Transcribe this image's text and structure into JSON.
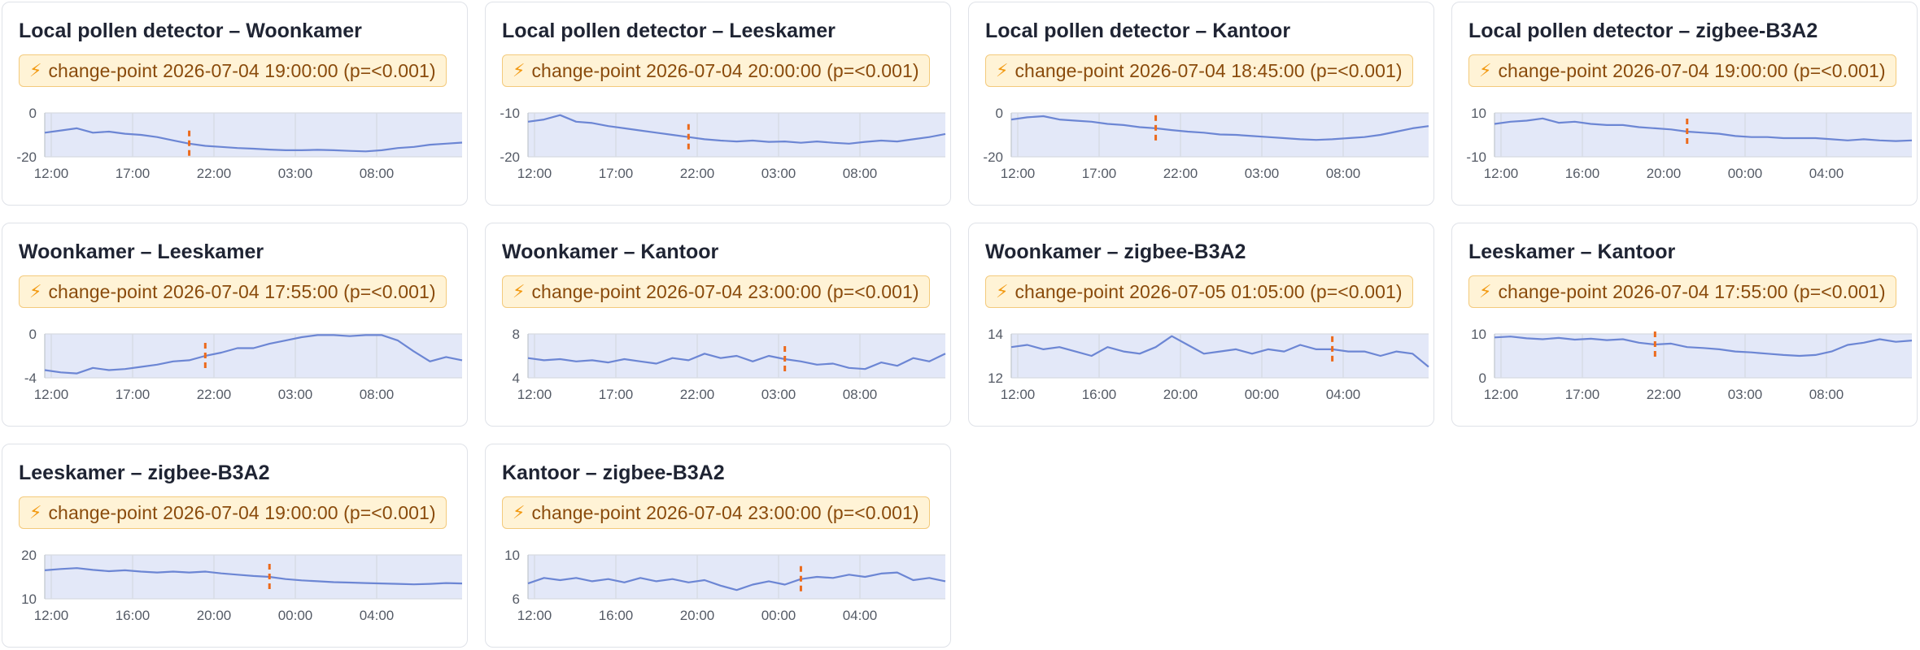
{
  "colors": {
    "line": "#6c86d4",
    "area": "#e3e8f8",
    "grid": "#d6dae2",
    "changepoint": "#ec6a1c",
    "badge_bg": "#fff3d6",
    "badge_border": "#f3ca7c",
    "badge_text": "#8a4b0c"
  },
  "icons": {
    "badge": "lightning-bolt-icon",
    "bolt_glyph": "⚡"
  },
  "chart_data": [
    {
      "type": "line",
      "title": "Local pollen detector – Woonkamer",
      "badge": "change-point 2026-07-04 19:00:00 (p=<0.001)",
      "x_ticks": [
        "12:00",
        "17:00",
        "22:00",
        "03:00",
        "08:00"
      ],
      "y_ticks": [
        0,
        -20
      ],
      "ylim": [
        -20,
        0
      ],
      "grid": true,
      "changepoint_index": 9,
      "values": [
        -9,
        -8,
        -7,
        -9,
        -8.5,
        -9.5,
        -10,
        -11,
        -12.5,
        -14,
        -15,
        -15.5,
        -16,
        -16.3,
        -16.7,
        -17,
        -17,
        -16.8,
        -17,
        -17.3,
        -17.5,
        -17,
        -16,
        -15.5,
        -14.5,
        -14,
        -13.5
      ]
    },
    {
      "type": "line",
      "title": "Local pollen detector – Leeskamer",
      "badge": "change-point 2026-07-04 20:00:00 (p=<0.001)",
      "x_ticks": [
        "12:00",
        "17:00",
        "22:00",
        "03:00",
        "08:00"
      ],
      "y_ticks": [
        -10,
        -20
      ],
      "ylim": [
        -20,
        -10
      ],
      "grid": true,
      "changepoint_index": 10,
      "values": [
        -12,
        -11.5,
        -10.5,
        -12,
        -12.3,
        -13,
        -13.5,
        -14,
        -14.5,
        -15,
        -15.5,
        -16,
        -16.3,
        -16.5,
        -16.3,
        -16.6,
        -16.5,
        -16.8,
        -16.5,
        -16.8,
        -17,
        -16.6,
        -16.3,
        -16.5,
        -16,
        -15.5,
        -14.8
      ]
    },
    {
      "type": "line",
      "title": "Local pollen detector – Kantoor",
      "badge": "change-point 2026-07-04 18:45:00 (p=<0.001)",
      "x_ticks": [
        "12:00",
        "17:00",
        "22:00",
        "03:00",
        "08:00"
      ],
      "y_ticks": [
        0,
        -20
      ],
      "ylim": [
        -20,
        0
      ],
      "grid": true,
      "changepoint_index": 9,
      "values": [
        -3,
        -2,
        -1.5,
        -3,
        -3.5,
        -4,
        -5,
        -5.5,
        -6.5,
        -7,
        -7.8,
        -8.5,
        -9,
        -9.8,
        -10,
        -10.5,
        -11,
        -11.5,
        -12,
        -12.3,
        -12,
        -11.5,
        -11,
        -10,
        -8.5,
        -7,
        -6
      ]
    },
    {
      "type": "line",
      "title": "Local pollen detector – zigbee-B3A2",
      "badge": "change-point 2026-07-04 19:00:00 (p=<0.001)",
      "x_ticks": [
        "12:00",
        "16:00",
        "20:00",
        "00:00",
        "04:00"
      ],
      "y_ticks": [
        10,
        -10
      ],
      "ylim": [
        -10,
        10
      ],
      "grid": true,
      "changepoint_index": 12,
      "values": [
        5,
        6,
        6.5,
        7.5,
        5.5,
        6,
        5,
        4.5,
        4.5,
        3.5,
        3,
        2.5,
        1.5,
        1,
        0.5,
        -0.5,
        -1,
        -1,
        -1.5,
        -1.5,
        -1.5,
        -2,
        -2.5,
        -2,
        -2.5,
        -2.8,
        -2.5
      ]
    },
    {
      "type": "line",
      "title": "Woonkamer – Leeskamer",
      "badge": "change-point 2026-07-04 17:55:00 (p=<0.001)",
      "x_ticks": [
        "12:00",
        "17:00",
        "22:00",
        "03:00",
        "08:00"
      ],
      "y_ticks": [
        0,
        -4
      ],
      "ylim": [
        -4,
        0
      ],
      "grid": true,
      "changepoint_index": 10,
      "values": [
        -3.3,
        -3.5,
        -3.6,
        -3.1,
        -3.3,
        -3.2,
        -3.0,
        -2.8,
        -2.5,
        -2.4,
        -2.0,
        -1.7,
        -1.3,
        -1.3,
        -0.9,
        -0.6,
        -0.3,
        -0.1,
        -0.1,
        -0.2,
        -0.1,
        -0.1,
        -0.6,
        -1.6,
        -2.5,
        -2.1,
        -2.4
      ]
    },
    {
      "type": "line",
      "title": "Woonkamer – Kantoor",
      "badge": "change-point 2026-07-04 23:00:00 (p=<0.001)",
      "x_ticks": [
        "12:00",
        "17:00",
        "22:00",
        "03:00",
        "08:00"
      ],
      "y_ticks": [
        8,
        4
      ],
      "ylim": [
        4,
        8
      ],
      "grid": true,
      "changepoint_index": 16,
      "values": [
        5.8,
        5.6,
        5.7,
        5.5,
        5.6,
        5.4,
        5.7,
        5.5,
        5.3,
        5.8,
        5.6,
        6.2,
        5.8,
        6.0,
        5.5,
        6.0,
        5.7,
        5.5,
        5.2,
        5.3,
        4.9,
        4.8,
        5.4,
        5.1,
        5.8,
        5.5,
        6.2
      ]
    },
    {
      "type": "line",
      "title": "Woonkamer – zigbee-B3A2",
      "badge": "change-point 2026-07-05 01:05:00 (p=<0.001)",
      "x_ticks": [
        "12:00",
        "16:00",
        "20:00",
        "00:00",
        "04:00"
      ],
      "y_ticks": [
        14,
        12
      ],
      "ylim": [
        12,
        14
      ],
      "grid": true,
      "changepoint_index": 20,
      "values": [
        13.4,
        13.5,
        13.3,
        13.4,
        13.2,
        13.0,
        13.4,
        13.2,
        13.1,
        13.4,
        13.9,
        13.5,
        13.1,
        13.2,
        13.3,
        13.1,
        13.3,
        13.2,
        13.5,
        13.3,
        13.3,
        13.2,
        13.2,
        13.0,
        13.2,
        13.1,
        12.5
      ]
    },
    {
      "type": "line",
      "title": "Leeskamer – Kantoor",
      "badge": "change-point 2026-07-04 17:55:00 (p=<0.001)",
      "x_ticks": [
        "12:00",
        "17:00",
        "22:00",
        "03:00",
        "08:00"
      ],
      "y_ticks": [
        10,
        0
      ],
      "ylim": [
        0,
        10
      ],
      "grid": true,
      "changepoint_index": 10,
      "values": [
        9.2,
        9.4,
        9.0,
        8.8,
        9.1,
        8.7,
        8.9,
        8.6,
        8.8,
        8.0,
        7.6,
        7.8,
        7.0,
        6.8,
        6.5,
        6.0,
        5.8,
        5.5,
        5.2,
        5.0,
        5.2,
        6.0,
        7.5,
        8.0,
        8.8,
        8.2,
        8.5
      ]
    },
    {
      "type": "line",
      "title": "Leeskamer – zigbee-B3A2",
      "badge": "change-point 2026-07-04 19:00:00 (p=<0.001)",
      "x_ticks": [
        "12:00",
        "16:00",
        "20:00",
        "00:00",
        "04:00"
      ],
      "y_ticks": [
        20,
        10
      ],
      "ylim": [
        10,
        20
      ],
      "grid": true,
      "changepoint_index": 14,
      "values": [
        16.5,
        16.8,
        17.0,
        16.6,
        16.3,
        16.5,
        16.2,
        16.0,
        16.2,
        16.0,
        16.2,
        15.8,
        15.5,
        15.2,
        15.0,
        14.5,
        14.2,
        14.0,
        13.8,
        13.7,
        13.6,
        13.5,
        13.4,
        13.3,
        13.4,
        13.6,
        13.5
      ]
    },
    {
      "type": "line",
      "title": "Kantoor – zigbee-B3A2",
      "badge": "change-point 2026-07-04 23:00:00 (p=<0.001)",
      "x_ticks": [
        "12:00",
        "16:00",
        "20:00",
        "00:00",
        "04:00"
      ],
      "y_ticks": [
        10,
        6
      ],
      "ylim": [
        6,
        10
      ],
      "grid": true,
      "changepoint_index": 17,
      "values": [
        7.4,
        7.9,
        7.7,
        7.9,
        7.6,
        7.8,
        7.5,
        7.9,
        7.6,
        7.8,
        7.5,
        7.7,
        7.2,
        6.8,
        7.3,
        7.6,
        7.3,
        7.8,
        8.0,
        7.9,
        8.2,
        8.0,
        8.3,
        8.4,
        7.7,
        7.9,
        7.6
      ]
    }
  ]
}
